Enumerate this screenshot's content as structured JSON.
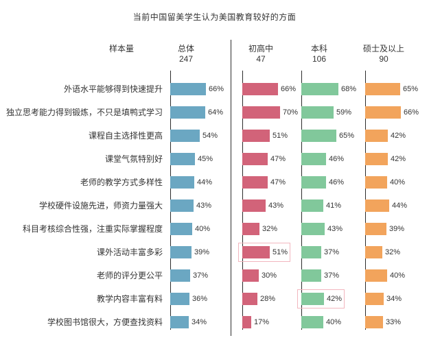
{
  "title": "当前中国留美学生认为美国教育较好的方面",
  "header": {
    "sample_size_label": "样本量"
  },
  "chart_data": {
    "type": "bar",
    "orientation": "horizontal",
    "title": "当前中国留美学生认为美国教育较好的方面",
    "value_suffix": "%",
    "value_range": [
      0,
      70
    ],
    "grid": false,
    "categories": [
      "外语水平能够得到快速提升",
      "独立思考能力得到锻炼，不只是填鸭式学习",
      "课程自主选择性更高",
      "课堂气氛特别好",
      "老师的教学方式多样性",
      "学校硬件设施先进，师资力量强大",
      "科目考核综合性强，注重实际掌握程度",
      "课外活动丰富多彩",
      "老师的评分更公平",
      "教学内容丰富有料",
      "学校图书馆很大，方便查找资料"
    ],
    "series": [
      {
        "name": "总体",
        "sample_size": "247",
        "color": "#6BA7C2",
        "values": [
          66,
          64,
          54,
          45,
          44,
          43,
          40,
          39,
          37,
          36,
          34
        ]
      },
      {
        "name": "初高中",
        "sample_size": "47",
        "color": "#D26379",
        "values": [
          66,
          70,
          51,
          47,
          47,
          43,
          32,
          51,
          30,
          28,
          17
        ]
      },
      {
        "name": "本科",
        "sample_size": "106",
        "color": "#81C89B",
        "values": [
          68,
          59,
          65,
          46,
          46,
          41,
          43,
          37,
          37,
          42,
          40
        ]
      },
      {
        "name": "硕士及以上",
        "sample_size": "90",
        "color": "#F2A45C",
        "values": [
          65,
          66,
          42,
          42,
          40,
          44,
          39,
          32,
          40,
          34,
          33
        ]
      }
    ],
    "highlights": [
      {
        "series": "初高中",
        "category_index": 7,
        "value": 51
      },
      {
        "series": "本科",
        "category_index": 9,
        "value": 42
      }
    ]
  }
}
